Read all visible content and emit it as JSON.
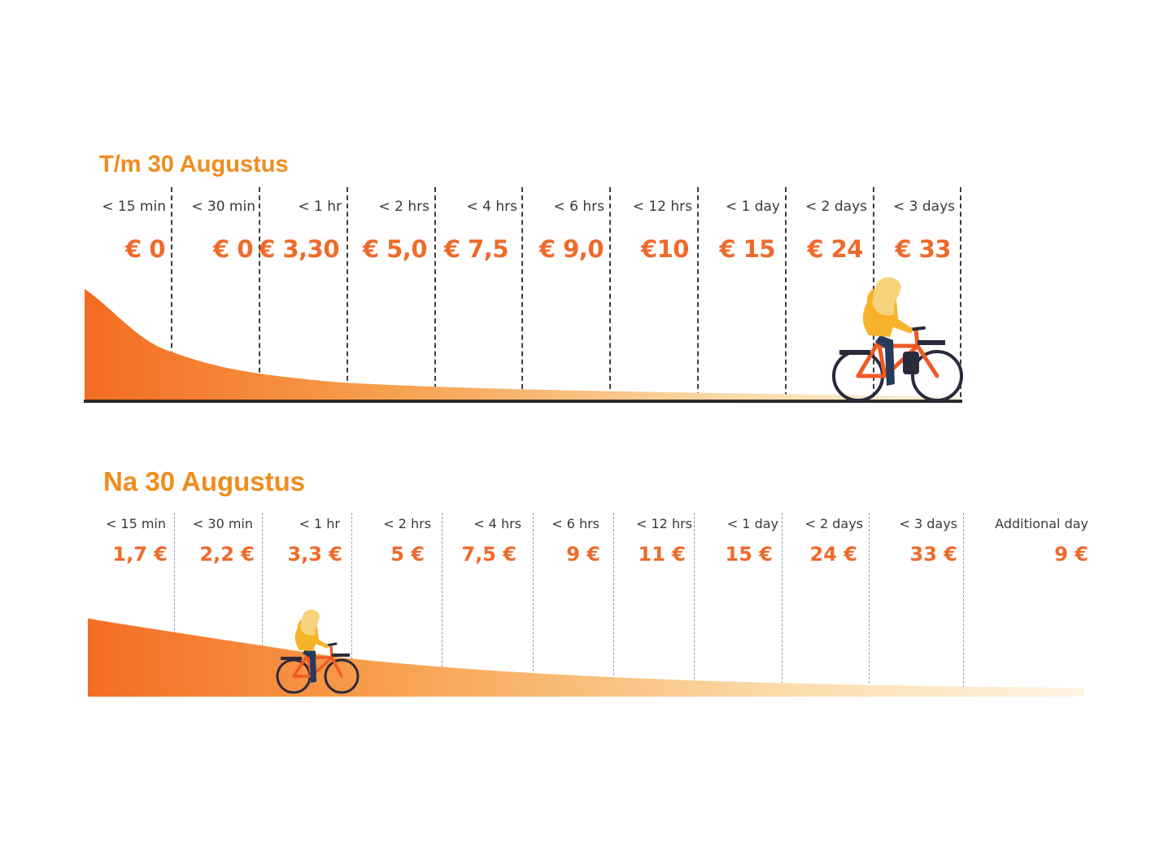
{
  "colors": {
    "accent": "#f08c1e",
    "price": "#ef6a2a",
    "gradient_start": "#f36c21",
    "gradient_end": "#fdf1dd",
    "baseline": "#2b2b2b"
  },
  "sections": [
    {
      "title": "T/m 30 Augustus",
      "columns": [
        {
          "label": "< 15 min",
          "price": "€ 0"
        },
        {
          "label": "< 30 min",
          "price": "€ 0"
        },
        {
          "label": "< 1 hr",
          "price": "€ 3,30"
        },
        {
          "label": "< 2 hrs",
          "price": "€ 5,0"
        },
        {
          "label": "< 4 hrs",
          "price": "€ 7,5"
        },
        {
          "label": "< 6 hrs",
          "price": "€ 9,0"
        },
        {
          "label": "< 12 hrs",
          "price": "€10"
        },
        {
          "label": "< 1 day",
          "price": "€ 15"
        },
        {
          "label": "< 2 days",
          "price": "€ 24"
        },
        {
          "label": "< 3 days",
          "price": "€ 33"
        }
      ],
      "illustration": "cyclist-icon"
    },
    {
      "title": "Na 30 Augustus",
      "columns": [
        {
          "label": "< 15 min",
          "price": "1,7 €"
        },
        {
          "label": "< 30 min",
          "price": "2,2 €"
        },
        {
          "label": "< 1 hr",
          "price": "3,3 €"
        },
        {
          "label": "< 2 hrs",
          "price": "5 €"
        },
        {
          "label": "< 4 hrs",
          "price": "7,5 €"
        },
        {
          "label": "< 6 hrs",
          "price": "9 €"
        },
        {
          "label": "< 12 hrs",
          "price": "11 €"
        },
        {
          "label": "< 1 day",
          "price": "15 €"
        },
        {
          "label": "< 2 days",
          "price": "24 €"
        },
        {
          "label": "< 3 days",
          "price": "33 €"
        },
        {
          "label": "Additional day",
          "price": "9 €"
        }
      ],
      "illustration": "cyclist-icon"
    }
  ]
}
